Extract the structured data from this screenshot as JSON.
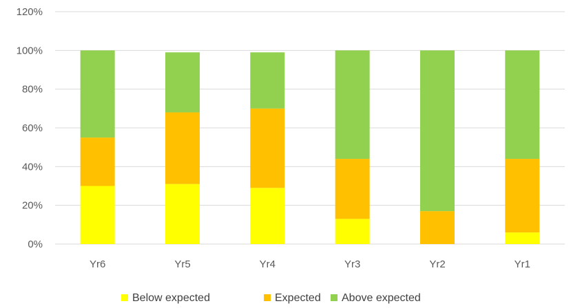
{
  "chart_data": {
    "type": "bar",
    "stacked": true,
    "categories": [
      "Yr6",
      "Yr5",
      "Yr4",
      "Yr3",
      "Yr2",
      "Yr1"
    ],
    "series": [
      {
        "name": "Below expected",
        "color": "#FFFF00",
        "values": [
          30,
          31,
          29,
          13,
          0,
          6
        ]
      },
      {
        "name": "Expected",
        "color": "#FFC000",
        "values": [
          25,
          37,
          41,
          31,
          17,
          38
        ]
      },
      {
        "name": "Above expected",
        "color": "#92D050",
        "values": [
          45,
          31,
          29,
          56,
          83,
          56
        ]
      }
    ],
    "y_ticks": [
      "0%",
      "20%",
      "40%",
      "60%",
      "80%",
      "100%",
      "120%"
    ],
    "ylim": [
      0,
      120
    ],
    "grid": true,
    "legend_position": "bottom",
    "grid_color": "#D9D9D9"
  }
}
